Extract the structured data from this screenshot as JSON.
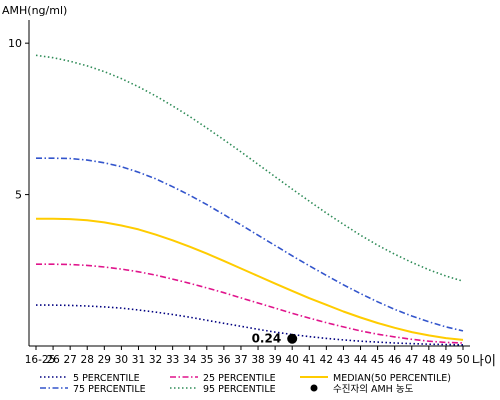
{
  "chart_data": {
    "type": "line",
    "ylabel": "AMH(ng/ml)",
    "xlabel": "나이",
    "ylim": [
      0,
      10.6
    ],
    "yticks": [
      5,
      10
    ],
    "ytick_labels": [
      "5",
      "10"
    ],
    "grid": false,
    "categories": [
      "16-25",
      "26",
      "27",
      "28",
      "29",
      "30",
      "31",
      "32",
      "33",
      "34",
      "35",
      "36",
      "37",
      "38",
      "39",
      "40",
      "41",
      "42",
      "43",
      "44",
      "45",
      "46",
      "47",
      "48",
      "49",
      "50"
    ],
    "series": [
      {
        "name": "5 PERCENTILE",
        "color": "#000080",
        "dash": "dot",
        "values": [
          1.35,
          1.35,
          1.34,
          1.32,
          1.29,
          1.25,
          1.19,
          1.12,
          1.04,
          0.95,
          0.85,
          0.75,
          0.65,
          0.55,
          0.46,
          0.38,
          0.31,
          0.25,
          0.2,
          0.16,
          0.13,
          0.1,
          0.08,
          0.06,
          0.05,
          0.04
        ]
      },
      {
        "name": "25 PERCENTILE",
        "color": "#e0148c",
        "dash": "dashdot",
        "values": [
          2.7,
          2.7,
          2.69,
          2.66,
          2.61,
          2.54,
          2.45,
          2.34,
          2.21,
          2.07,
          1.92,
          1.76,
          1.59,
          1.42,
          1.25,
          1.08,
          0.92,
          0.77,
          0.63,
          0.5,
          0.39,
          0.3,
          0.22,
          0.16,
          0.12,
          0.1
        ]
      },
      {
        "name": "MEDIAN(50 PERCENTILE)",
        "color": "#ffcc00",
        "dash": "solid",
        "values": [
          4.2,
          4.2,
          4.19,
          4.15,
          4.08,
          3.98,
          3.85,
          3.68,
          3.49,
          3.28,
          3.05,
          2.81,
          2.56,
          2.31,
          2.06,
          1.82,
          1.58,
          1.36,
          1.14,
          0.94,
          0.76,
          0.6,
          0.46,
          0.35,
          0.26,
          0.2
        ]
      },
      {
        "name": "75 PERCENTILE",
        "color": "#3355cc",
        "dash": "dashdot",
        "values": [
          6.2,
          6.2,
          6.19,
          6.14,
          6.05,
          5.92,
          5.74,
          5.52,
          5.26,
          4.98,
          4.67,
          4.34,
          4.0,
          3.66,
          3.32,
          2.98,
          2.65,
          2.33,
          2.02,
          1.73,
          1.46,
          1.21,
          0.99,
          0.8,
          0.63,
          0.5
        ]
      },
      {
        "name": "95 PERCENTILE",
        "color": "#2e8b57",
        "dash": "dot",
        "values": [
          9.6,
          9.52,
          9.4,
          9.25,
          9.06,
          8.83,
          8.56,
          8.26,
          7.93,
          7.58,
          7.2,
          6.81,
          6.41,
          6.0,
          5.59,
          5.18,
          4.78,
          4.39,
          4.02,
          3.66,
          3.33,
          3.03,
          2.76,
          2.52,
          2.31,
          2.14
        ]
      }
    ],
    "marker": {
      "name": "수진자의 AMH 농도",
      "category": "40",
      "value": 0.24,
      "label": "0.24",
      "color": "#000000"
    },
    "legend": {
      "position": "bottom",
      "items": [
        {
          "label": "5 PERCENTILE",
          "series": 0
        },
        {
          "label": "25 PERCENTILE",
          "series": 1
        },
        {
          "label": "MEDIAN(50 PERCENTILE)",
          "series": 2
        },
        {
          "label": "75 PERCENTILE",
          "series": 3
        },
        {
          "label": "95 PERCENTILE",
          "series": 4
        },
        {
          "label": "수진자의 AMH 농도",
          "marker": true
        }
      ]
    }
  }
}
